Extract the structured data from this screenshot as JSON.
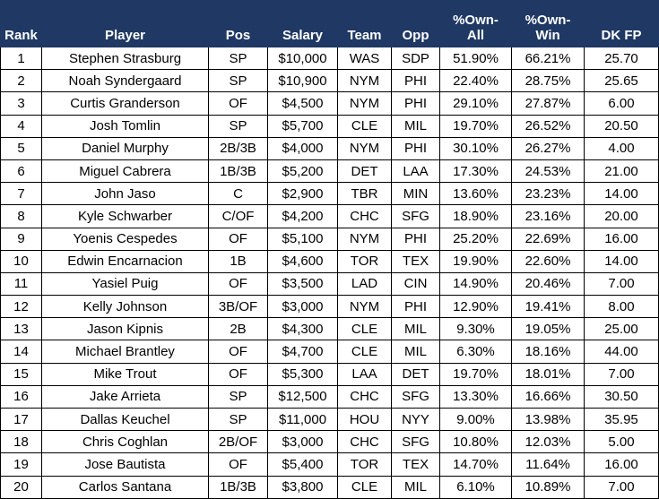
{
  "headers": [
    "Rank",
    "Player",
    "Pos",
    "Salary",
    "Team",
    "Opp",
    "%Own-\nAll",
    "%Own-\nWin",
    "DK FP"
  ],
  "rows": [
    [
      "1",
      "Stephen Strasburg",
      "SP",
      "$10,000",
      "WAS",
      "SDP",
      "51.90%",
      "66.21%",
      "25.70"
    ],
    [
      "2",
      "Noah Syndergaard",
      "SP",
      "$10,900",
      "NYM",
      "PHI",
      "22.40%",
      "28.75%",
      "25.65"
    ],
    [
      "3",
      "Curtis Granderson",
      "OF",
      "$4,500",
      "NYM",
      "PHI",
      "29.10%",
      "27.87%",
      "6.00"
    ],
    [
      "4",
      "Josh Tomlin",
      "SP",
      "$5,700",
      "CLE",
      "MIL",
      "19.70%",
      "26.52%",
      "20.50"
    ],
    [
      "5",
      "Daniel Murphy",
      "2B/3B",
      "$4,000",
      "NYM",
      "PHI",
      "30.10%",
      "26.27%",
      "4.00"
    ],
    [
      "6",
      "Miguel Cabrera",
      "1B/3B",
      "$5,200",
      "DET",
      "LAA",
      "17.30%",
      "24.53%",
      "21.00"
    ],
    [
      "7",
      "John Jaso",
      "C",
      "$2,900",
      "TBR",
      "MIN",
      "13.60%",
      "23.23%",
      "14.00"
    ],
    [
      "8",
      "Kyle Schwarber",
      "C/OF",
      "$4,200",
      "CHC",
      "SFG",
      "18.90%",
      "23.16%",
      "20.00"
    ],
    [
      "9",
      "Yoenis Cespedes",
      "OF",
      "$5,100",
      "NYM",
      "PHI",
      "25.20%",
      "22.69%",
      "16.00"
    ],
    [
      "10",
      "Edwin Encarnacion",
      "1B",
      "$4,600",
      "TOR",
      "TEX",
      "19.90%",
      "22.60%",
      "14.00"
    ],
    [
      "11",
      "Yasiel Puig",
      "OF",
      "$3,500",
      "LAD",
      "CIN",
      "14.90%",
      "20.46%",
      "7.00"
    ],
    [
      "12",
      "Kelly Johnson",
      "3B/OF",
      "$3,000",
      "NYM",
      "PHI",
      "12.90%",
      "19.41%",
      "8.00"
    ],
    [
      "13",
      "Jason Kipnis",
      "2B",
      "$4,300",
      "CLE",
      "MIL",
      "9.30%",
      "19.05%",
      "25.00"
    ],
    [
      "14",
      "Michael Brantley",
      "OF",
      "$4,700",
      "CLE",
      "MIL",
      "6.30%",
      "18.16%",
      "44.00"
    ],
    [
      "15",
      "Mike Trout",
      "OF",
      "$5,300",
      "LAA",
      "DET",
      "19.70%",
      "18.01%",
      "7.00"
    ],
    [
      "16",
      "Jake Arrieta",
      "SP",
      "$12,500",
      "CHC",
      "SFG",
      "13.30%",
      "16.66%",
      "30.50"
    ],
    [
      "17",
      "Dallas Keuchel",
      "SP",
      "$11,000",
      "HOU",
      "NYY",
      "9.00%",
      "13.98%",
      "35.95"
    ],
    [
      "18",
      "Chris Coghlan",
      "2B/OF",
      "$3,000",
      "CHC",
      "SFG",
      "10.80%",
      "12.03%",
      "5.00"
    ],
    [
      "19",
      "Jose Bautista",
      "OF",
      "$5,400",
      "TOR",
      "TEX",
      "14.70%",
      "11.64%",
      "16.00"
    ],
    [
      "20",
      "Carlos Santana",
      "1B/3B",
      "$3,800",
      "CLE",
      "MIL",
      "6.10%",
      "10.89%",
      "7.00"
    ]
  ],
  "colors": {
    "header_bg": "#1f3864",
    "header_text": "#ffffff",
    "border": "#000000"
  }
}
